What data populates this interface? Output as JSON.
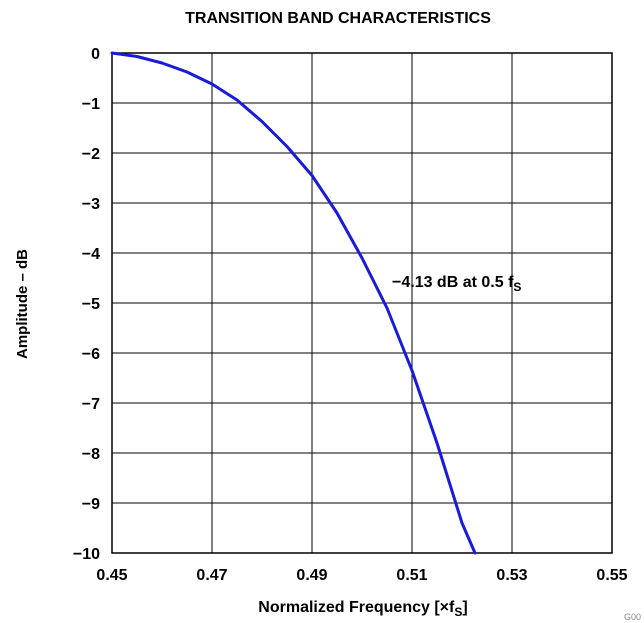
{
  "chart_data": {
    "type": "line",
    "title": "TRANSITION BAND CHARACTERISTICS",
    "xlabel": "Normalized Frequency [×f",
    "xlabel_sub": "S",
    "xlabel_suffix": "]",
    "ylabel": "Amplitude – dB",
    "xlim": [
      0.45,
      0.55
    ],
    "ylim": [
      -10,
      0
    ],
    "x_ticks": [
      "0.45",
      "0.47",
      "0.49",
      "0.51",
      "0.53",
      "0.55"
    ],
    "x_tick_values": [
      0.45,
      0.47,
      0.49,
      0.51,
      0.53,
      0.55
    ],
    "y_ticks": [
      "0",
      "−1",
      "−2",
      "−3",
      "−4",
      "−5",
      "−6",
      "−7",
      "−8",
      "−9",
      "−10"
    ],
    "y_tick_values": [
      0,
      -1,
      -2,
      -3,
      -4,
      -5,
      -6,
      -7,
      -8,
      -9,
      -10
    ],
    "grid": true,
    "annotation": {
      "text": "−4.13 dB at 0.5 f",
      "sub": "S"
    },
    "series": [
      {
        "color": "#1a1adb",
        "x": [
          0.45,
          0.455,
          0.46,
          0.465,
          0.47,
          0.475,
          0.48,
          0.485,
          0.49,
          0.495,
          0.5,
          0.505,
          0.51,
          0.515,
          0.52,
          0.5226
        ],
        "y": [
          0.0,
          -0.07,
          -0.2,
          -0.38,
          -0.62,
          -0.94,
          -1.37,
          -1.87,
          -2.45,
          -3.2,
          -4.1,
          -5.1,
          -6.35,
          -7.8,
          -9.4,
          -10.0
        ]
      }
    ],
    "footer_code": "G00"
  }
}
